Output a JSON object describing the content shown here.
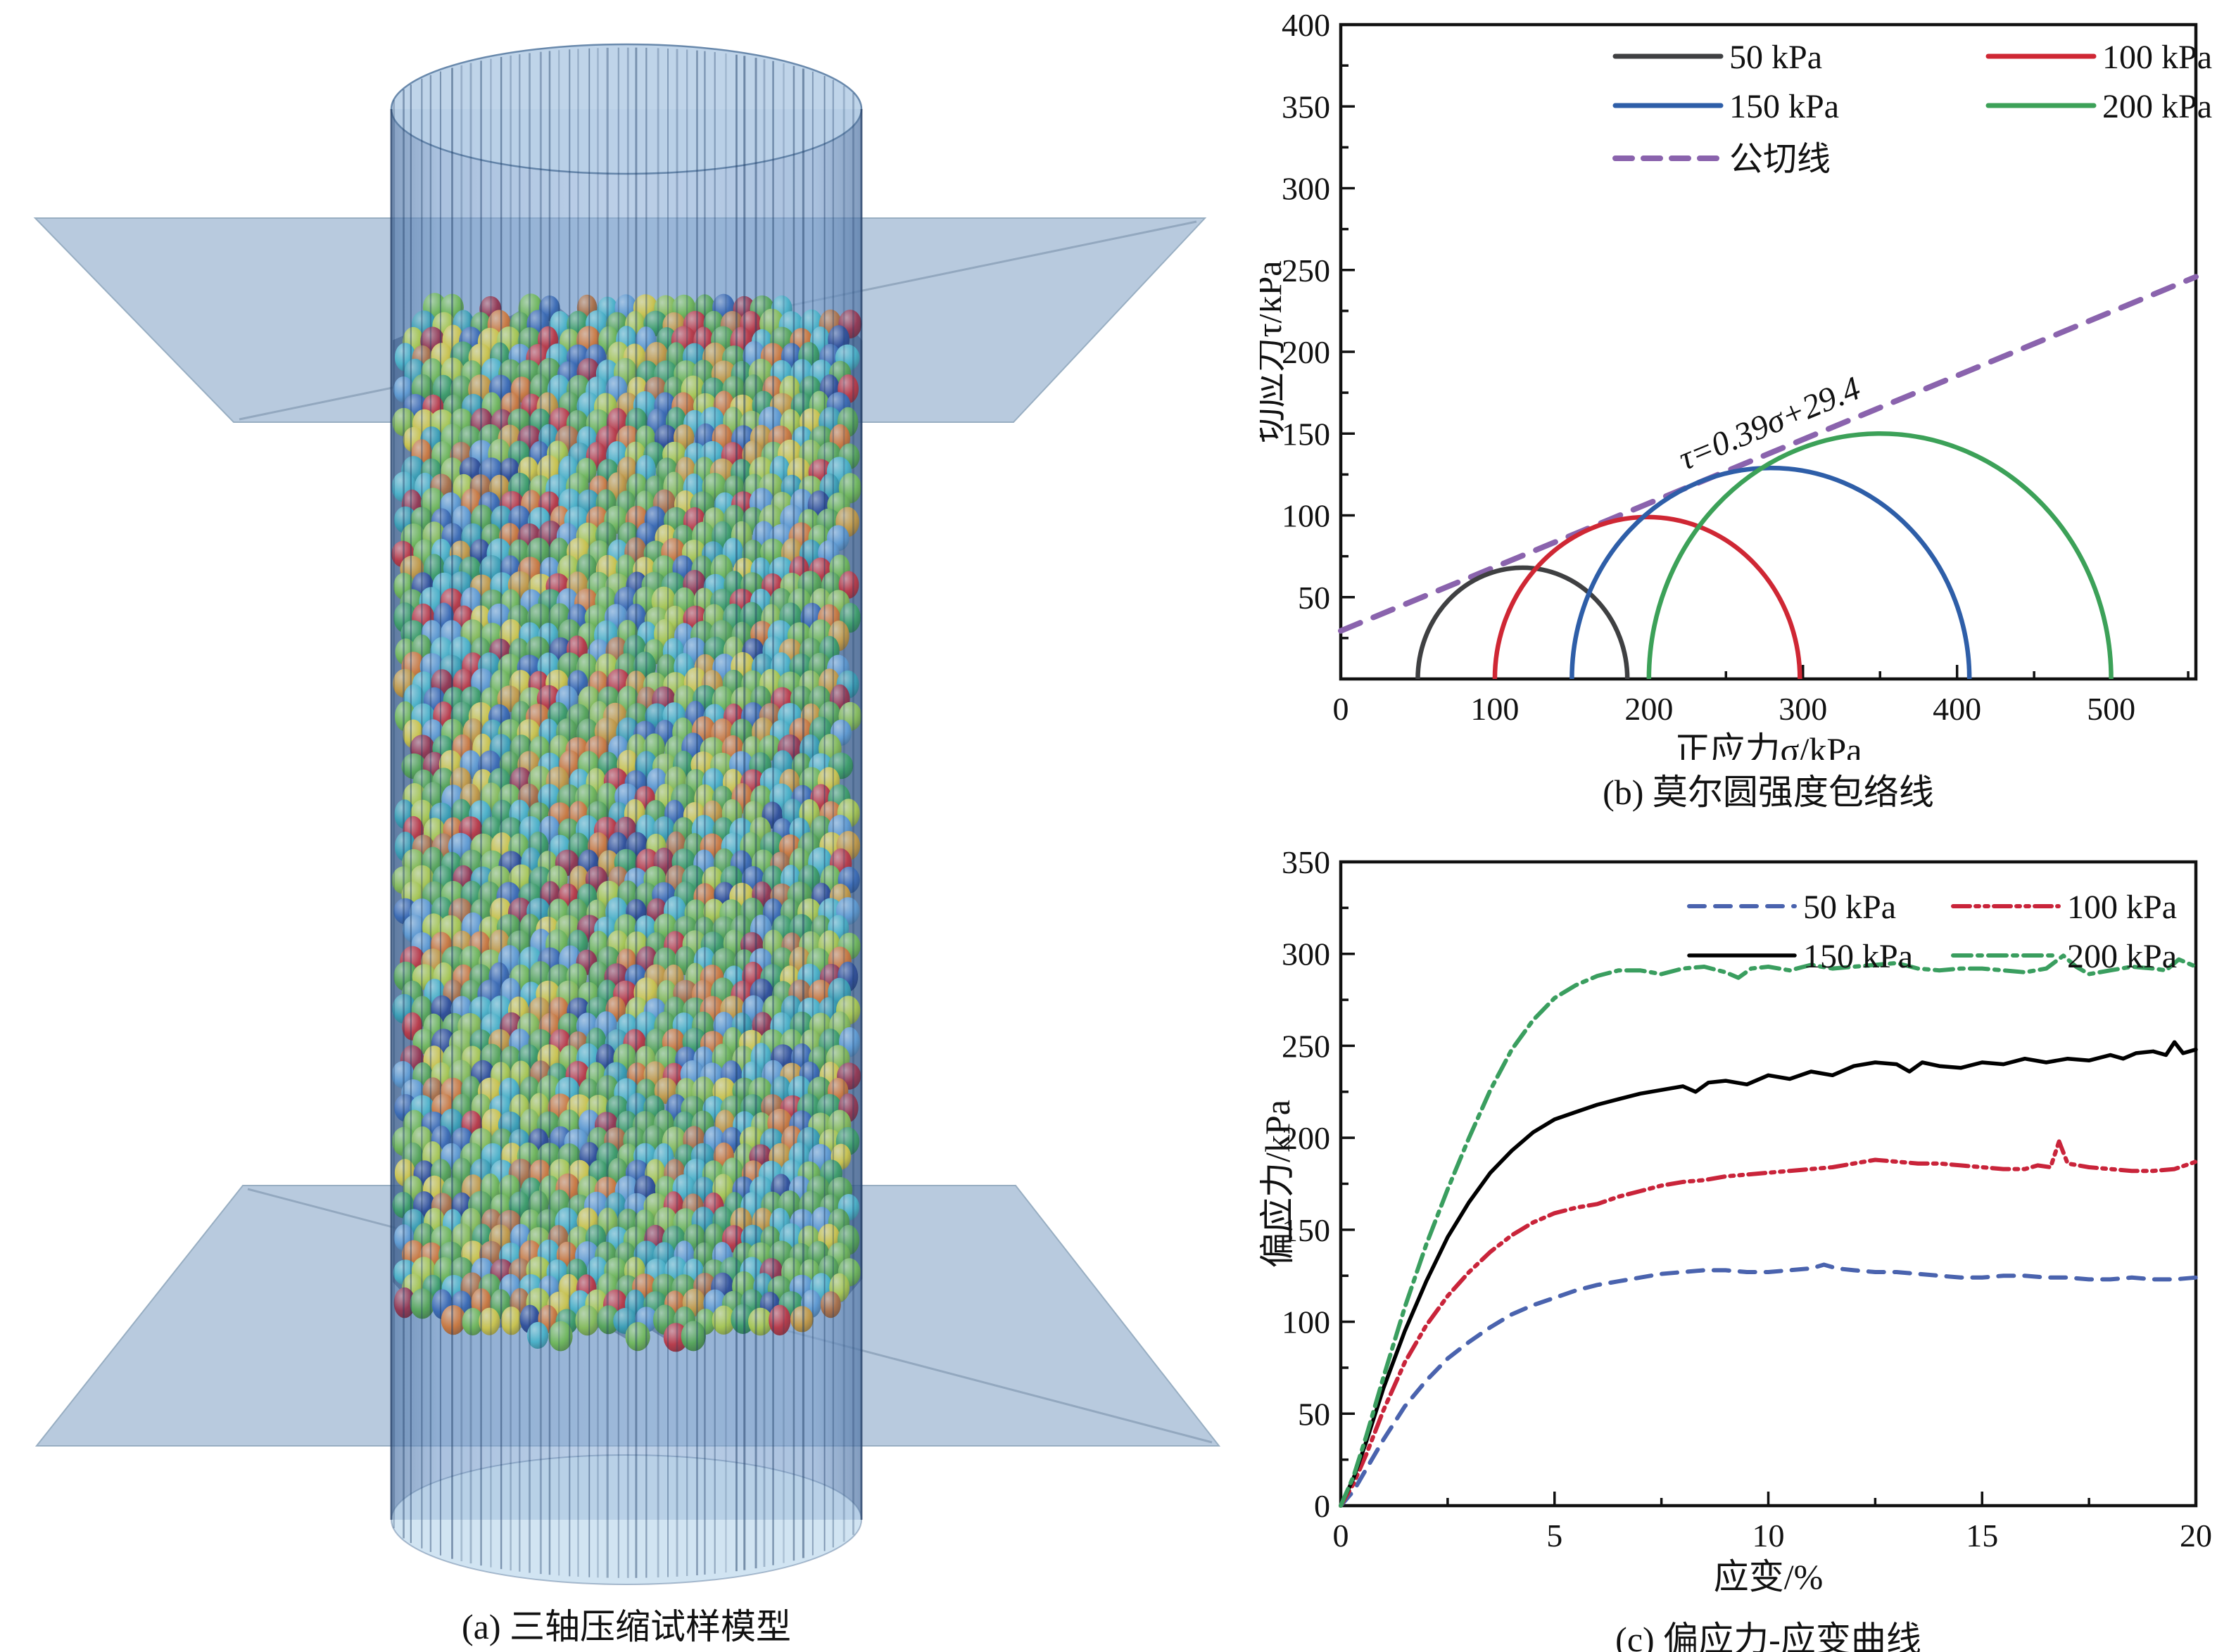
{
  "figure": {
    "panel_a": {
      "caption": "(a) 三轴压缩试样模型"
    },
    "panel_b": {
      "caption": "(b) 莫尔圆强度包络线"
    },
    "panel_c": {
      "caption": "(c) 偏应力-应变曲线"
    }
  },
  "chart_data": [
    {
      "id": "mohr_circles",
      "type": "line",
      "title": "(b) 莫尔圆强度包络线",
      "xlabel": "正应力σ/kPa",
      "ylabel": "切应力τ/kPa",
      "xlim": [
        0,
        555
      ],
      "ylim": [
        0,
        400
      ],
      "x_major_ticks": [
        0,
        100,
        200,
        300,
        400,
        500
      ],
      "x_minor_step": 50,
      "y_major_ticks": [
        50,
        100,
        150,
        200,
        250,
        300,
        350,
        400
      ],
      "y_minor_step": 25,
      "grid": false,
      "legend_position": "top-inside",
      "circles": [
        {
          "label": "50 kPa",
          "color": "#3f4042",
          "sigma3": 50,
          "sigma1": 186
        },
        {
          "label": "100 kPa",
          "color": "#cf2734",
          "sigma3": 100,
          "sigma1": 298
        },
        {
          "label": "150 kPa",
          "color": "#2e5ea8",
          "sigma3": 150,
          "sigma1": 408
        },
        {
          "label": "200 kPa",
          "color": "#3ca158",
          "sigma3": 200,
          "sigma1": 500
        }
      ],
      "tangent": {
        "label": "公切线",
        "color": "#8a63ad",
        "slope": 0.39,
        "intercept": 29.4,
        "equation": "τ=0.39σ+29.4"
      }
    },
    {
      "id": "stress_strain",
      "type": "line",
      "title": "(c) 偏应力-应变曲线",
      "xlabel": "应变/%",
      "ylabel": "偏应力/kPa",
      "xlim": [
        0,
        20
      ],
      "ylim": [
        0,
        350
      ],
      "x_major_ticks": [
        0,
        5,
        10,
        15,
        20
      ],
      "x_minor_step": 2.5,
      "y_major_ticks": [
        0,
        50,
        100,
        150,
        200,
        250,
        300,
        350
      ],
      "y_minor_step": 25,
      "grid": false,
      "legend_position": "top-inside",
      "series": [
        {
          "name": "50 kPa",
          "color": "#4a63ae",
          "style": "dashed",
          "points": [
            [
              0,
              0
            ],
            [
              0.3,
              8
            ],
            [
              0.6,
              20
            ],
            [
              1,
              36
            ],
            [
              1.5,
              54
            ],
            [
              2,
              68
            ],
            [
              2.5,
              80
            ],
            [
              3,
              89
            ],
            [
              3.5,
              97
            ],
            [
              4,
              104
            ],
            [
              4.5,
              109
            ],
            [
              5,
              113
            ],
            [
              5.5,
              117
            ],
            [
              6,
              120
            ],
            [
              6.5,
              122
            ],
            [
              7,
              124
            ],
            [
              7.5,
              126
            ],
            [
              8,
              127
            ],
            [
              8.5,
              128
            ],
            [
              9,
              128
            ],
            [
              9.5,
              127
            ],
            [
              10,
              127
            ],
            [
              10.5,
              128
            ],
            [
              11,
              129
            ],
            [
              11.3,
              131
            ],
            [
              11.6,
              129
            ],
            [
              12,
              128
            ],
            [
              12.5,
              127
            ],
            [
              13,
              127
            ],
            [
              13.5,
              126
            ],
            [
              14,
              125
            ],
            [
              14.5,
              124
            ],
            [
              15,
              124
            ],
            [
              15.5,
              125
            ],
            [
              16,
              125
            ],
            [
              16.5,
              124
            ],
            [
              17,
              124
            ],
            [
              17.5,
              123
            ],
            [
              18,
              123
            ],
            [
              18.5,
              124
            ],
            [
              19,
              123
            ],
            [
              19.5,
              123
            ],
            [
              20,
              124
            ]
          ]
        },
        {
          "name": "100 kPa",
          "color": "#c9243a",
          "style": "dash-dot-dot",
          "points": [
            [
              0,
              0
            ],
            [
              0.3,
              12
            ],
            [
              0.6,
              28
            ],
            [
              1,
              52
            ],
            [
              1.5,
              78
            ],
            [
              2,
              98
            ],
            [
              2.5,
              114
            ],
            [
              3,
              127
            ],
            [
              3.5,
              138
            ],
            [
              4,
              147
            ],
            [
              4.5,
              154
            ],
            [
              5,
              159
            ],
            [
              5.5,
              162
            ],
            [
              6,
              164
            ],
            [
              6.5,
              168
            ],
            [
              7,
              171
            ],
            [
              7.5,
              174
            ],
            [
              8,
              176
            ],
            [
              8.5,
              177
            ],
            [
              9,
              179
            ],
            [
              9.5,
              180
            ],
            [
              10,
              181
            ],
            [
              10.5,
              182
            ],
            [
              11,
              183
            ],
            [
              11.5,
              184
            ],
            [
              12,
              186
            ],
            [
              12.5,
              188
            ],
            [
              13,
              187
            ],
            [
              13.5,
              186
            ],
            [
              14,
              186
            ],
            [
              14.5,
              185
            ],
            [
              15,
              184
            ],
            [
              15.5,
              183
            ],
            [
              16,
              183
            ],
            [
              16.3,
              185
            ],
            [
              16.6,
              184
            ],
            [
              16.8,
              198
            ],
            [
              17,
              186
            ],
            [
              17.5,
              184
            ],
            [
              18,
              183
            ],
            [
              18.5,
              182
            ],
            [
              19,
              182
            ],
            [
              19.5,
              183
            ],
            [
              20,
              187
            ]
          ]
        },
        {
          "name": "150 kPa",
          "color": "#000000",
          "style": "solid",
          "points": [
            [
              0,
              0
            ],
            [
              0.3,
              15
            ],
            [
              0.6,
              35
            ],
            [
              1,
              64
            ],
            [
              1.5,
              95
            ],
            [
              2,
              122
            ],
            [
              2.5,
              146
            ],
            [
              3,
              165
            ],
            [
              3.5,
              181
            ],
            [
              4,
              193
            ],
            [
              4.5,
              203
            ],
            [
              5,
              210
            ],
            [
              5.5,
              214
            ],
            [
              6,
              218
            ],
            [
              6.5,
              221
            ],
            [
              7,
              224
            ],
            [
              7.5,
              226
            ],
            [
              8,
              228
            ],
            [
              8.3,
              225
            ],
            [
              8.6,
              230
            ],
            [
              9,
              231
            ],
            [
              9.5,
              229
            ],
            [
              10,
              234
            ],
            [
              10.5,
              232
            ],
            [
              11,
              236
            ],
            [
              11.5,
              234
            ],
            [
              12,
              239
            ],
            [
              12.5,
              241
            ],
            [
              13,
              240
            ],
            [
              13.3,
              236
            ],
            [
              13.6,
              241
            ],
            [
              14,
              239
            ],
            [
              14.5,
              238
            ],
            [
              15,
              241
            ],
            [
              15.5,
              240
            ],
            [
              16,
              243
            ],
            [
              16.5,
              241
            ],
            [
              17,
              243
            ],
            [
              17.5,
              242
            ],
            [
              18,
              245
            ],
            [
              18.3,
              243
            ],
            [
              18.6,
              246
            ],
            [
              19,
              247
            ],
            [
              19.3,
              245
            ],
            [
              19.5,
              252
            ],
            [
              19.7,
              246
            ],
            [
              20,
              248
            ]
          ]
        },
        {
          "name": "200 kPa",
          "color": "#3a9e5f",
          "style": "dash-dot",
          "points": [
            [
              0,
              0
            ],
            [
              0.3,
              16
            ],
            [
              0.6,
              38
            ],
            [
              1,
              70
            ],
            [
              1.5,
              108
            ],
            [
              2,
              142
            ],
            [
              2.5,
              172
            ],
            [
              3,
              200
            ],
            [
              3.5,
              226
            ],
            [
              4,
              248
            ],
            [
              4.5,
              264
            ],
            [
              5,
              276
            ],
            [
              5.5,
              283
            ],
            [
              6,
              288
            ],
            [
              6.5,
              291
            ],
            [
              7,
              291
            ],
            [
              7.5,
              289
            ],
            [
              8,
              292
            ],
            [
              8.5,
              293
            ],
            [
              9,
              290
            ],
            [
              9.3,
              287
            ],
            [
              9.6,
              292
            ],
            [
              10,
              293
            ],
            [
              10.5,
              291
            ],
            [
              11,
              294
            ],
            [
              11.5,
              292
            ],
            [
              12,
              293
            ],
            [
              12.5,
              294
            ],
            [
              13,
              295
            ],
            [
              13.5,
              292
            ],
            [
              14,
              291
            ],
            [
              14.5,
              292
            ],
            [
              15,
              292
            ],
            [
              15.5,
              291
            ],
            [
              16,
              290
            ],
            [
              16.5,
              292
            ],
            [
              16.9,
              299
            ],
            [
              17.2,
              293
            ],
            [
              17.5,
              289
            ],
            [
              18,
              291
            ],
            [
              18.5,
              293
            ],
            [
              19,
              292
            ],
            [
              19.3,
              291
            ],
            [
              19.6,
              297
            ],
            [
              20,
              293
            ]
          ]
        }
      ]
    }
  ],
  "model": {
    "membrane_color": "#6f9cc9",
    "plane_color": "#a7bed6",
    "particle_palette": [
      {
        "color": "#4fa83d",
        "w": 14
      },
      {
        "color": "#6fbf3f",
        "w": 10
      },
      {
        "color": "#8cc63f",
        "w": 7
      },
      {
        "color": "#2f9e52",
        "w": 8
      },
      {
        "color": "#b5d334",
        "w": 5
      },
      {
        "color": "#e3d02e",
        "w": 4
      },
      {
        "color": "#41b8c9",
        "w": 9
      },
      {
        "color": "#2b9fb0",
        "w": 4
      },
      {
        "color": "#5a9bd5",
        "w": 6
      },
      {
        "color": "#2d5fb0",
        "w": 5
      },
      {
        "color": "#1f3d8f",
        "w": 3
      },
      {
        "color": "#cc2127",
        "w": 5
      },
      {
        "color": "#9c1f35",
        "w": 3
      },
      {
        "color": "#e2711d",
        "w": 5
      },
      {
        "color": "#d79a26",
        "w": 4
      },
      {
        "color": "#b9672a",
        "w": 3
      }
    ]
  }
}
